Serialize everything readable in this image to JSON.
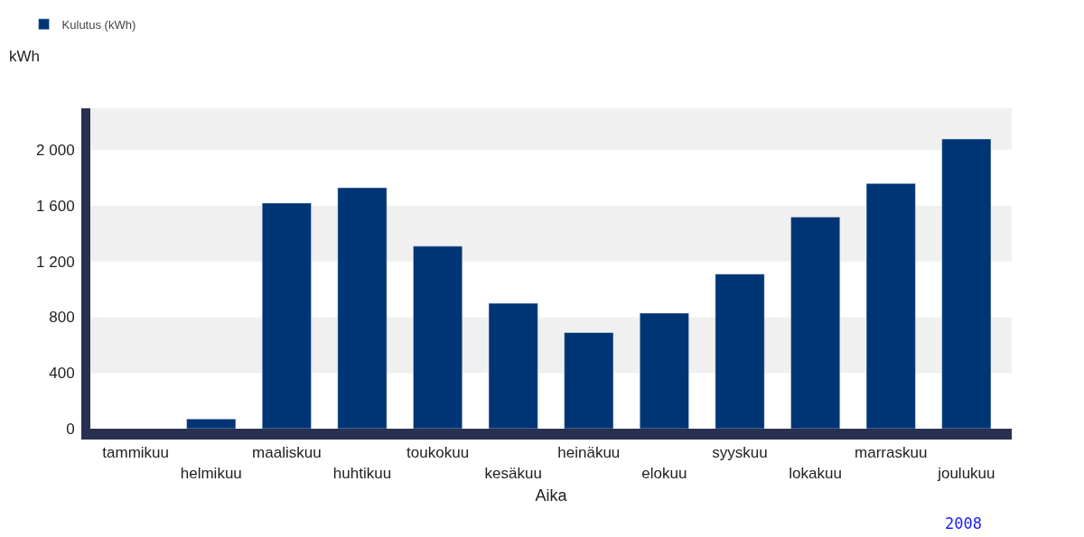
{
  "chart_data": {
    "type": "bar",
    "ylabel": "kWh",
    "xlabel": "Aika",
    "categories": [
      "tammikuu",
      "helmikuu",
      "maaliskuu",
      "huhtikuu",
      "toukokuu",
      "kesäkuu",
      "heinäkuu",
      "elokuu",
      "syyskuu",
      "lokakuu",
      "marraskuu",
      "joulukuu"
    ],
    "series": [
      {
        "name": "Kulutus (kWh)",
        "color": "#003575",
        "values": [
          null,
          70,
          1620,
          1730,
          1310,
          900,
          690,
          830,
          1110,
          1520,
          1760,
          2080
        ]
      }
    ],
    "ylim": [
      0,
      2300
    ],
    "yticks": [
      0,
      400,
      800,
      {
        "value": 1200,
        "label": "1 200"
      },
      {
        "value": 1600,
        "label": "1 600"
      },
      {
        "value": 2000,
        "label": "2 000"
      }
    ],
    "bands": [
      {
        "axis": "y",
        "from": 400,
        "to": 800,
        "color": "#f0f0f0"
      },
      {
        "axis": "y",
        "from": 1200,
        "to": 1600,
        "color": "#f0f0f0"
      },
      {
        "axis": "y",
        "from": 2000,
        "to": 2300,
        "color": "#f0f0f0"
      }
    ],
    "legend": "top left",
    "grid": false,
    "annotations": [
      "2008"
    ]
  }
}
